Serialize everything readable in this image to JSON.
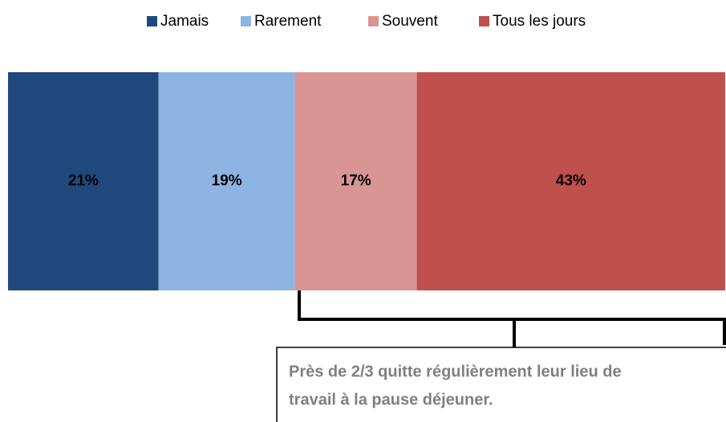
{
  "chart_data": {
    "type": "bar",
    "orientation": "horizontal",
    "stacked": true,
    "series": [
      {
        "name": "Jamais",
        "color": "#1f497d",
        "values": [
          21
        ],
        "value_labels": [
          "21%"
        ]
      },
      {
        "name": "Rarement",
        "color": "#8eb4e3",
        "values": [
          19
        ],
        "value_labels": [
          "19%"
        ]
      },
      {
        "name": "Souvent",
        "color": "#d99594",
        "values": [
          17
        ],
        "value_labels": [
          "17%"
        ]
      },
      {
        "name": "Tous les jours",
        "color": "#c0504d",
        "values": [
          43
        ],
        "value_labels": [
          "43%"
        ]
      }
    ],
    "legend": "top",
    "annotation": [
      "Près de 2/3 quitte régulièrement leur lieu de",
      "travail à la pause déjeuner."
    ]
  }
}
